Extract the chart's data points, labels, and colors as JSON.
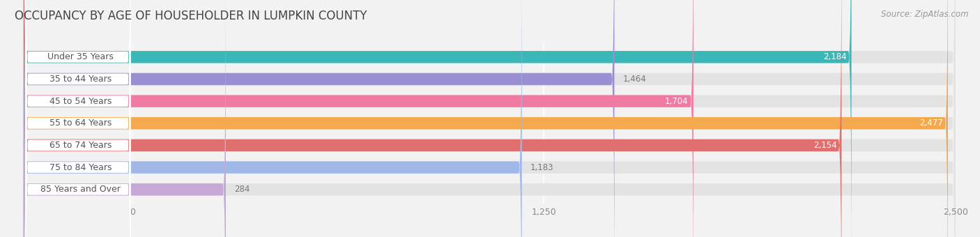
{
  "title": "OCCUPANCY BY AGE OF HOUSEHOLDER IN LUMPKIN COUNTY",
  "source": "Source: ZipAtlas.com",
  "categories": [
    "Under 35 Years",
    "35 to 44 Years",
    "45 to 54 Years",
    "55 to 64 Years",
    "65 to 74 Years",
    "75 to 84 Years",
    "85 Years and Over"
  ],
  "values": [
    2184,
    1464,
    1704,
    2477,
    2154,
    1183,
    284
  ],
  "bar_colors": [
    "#3ab8b8",
    "#9b8fd4",
    "#f07aa0",
    "#f5a94e",
    "#e07070",
    "#a0b8e8",
    "#c8a8d8"
  ],
  "xlim_max": 2500,
  "xticks": [
    0,
    1250,
    2500
  ],
  "background_color": "#f2f2f2",
  "bar_bg_color": "#e3e3e3",
  "title_fontsize": 12,
  "source_fontsize": 8.5,
  "tick_fontsize": 9,
  "label_fontsize": 8.5,
  "category_fontsize": 9
}
